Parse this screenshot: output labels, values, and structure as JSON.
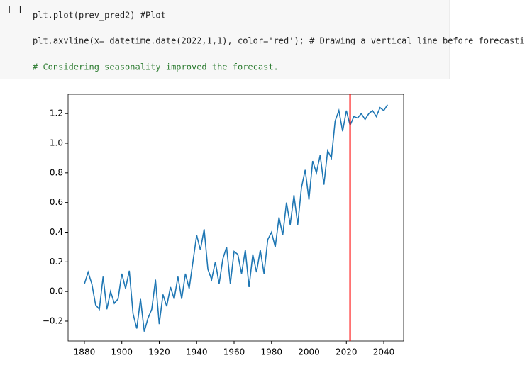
{
  "cell": {
    "prompt": "[ ]",
    "lines": [
      "plt.plot(prev_pred2) #Plot",
      "plt.axvline(x= datetime.date(2022,1,1), color='red'); # Drawing a vertical line before forecasti",
      "# Considering seasonality improved the forecast."
    ]
  },
  "chart_data": {
    "type": "line",
    "x": [
      1880,
      1882,
      1884,
      1886,
      1888,
      1890,
      1892,
      1894,
      1896,
      1898,
      1900,
      1902,
      1904,
      1906,
      1908,
      1910,
      1912,
      1914,
      1916,
      1918,
      1920,
      1922,
      1924,
      1926,
      1928,
      1930,
      1932,
      1934,
      1936,
      1938,
      1940,
      1942,
      1944,
      1946,
      1948,
      1950,
      1952,
      1954,
      1956,
      1958,
      1960,
      1962,
      1964,
      1966,
      1968,
      1970,
      1972,
      1974,
      1976,
      1978,
      1980,
      1982,
      1984,
      1986,
      1988,
      1990,
      1992,
      1994,
      1996,
      1998,
      2000,
      2002,
      2004,
      2006,
      2008,
      2010,
      2012,
      2014,
      2016,
      2018,
      2020,
      2022,
      2024,
      2026,
      2028,
      2030,
      2032,
      2034,
      2036,
      2038,
      2040,
      2042
    ],
    "series": [
      {
        "color": "#1f77b4",
        "values": [
          0.05,
          0.13,
          0.05,
          -0.09,
          -0.12,
          0.1,
          -0.12,
          0.0,
          -0.08,
          -0.05,
          0.12,
          0.02,
          0.14,
          -0.15,
          -0.25,
          -0.05,
          -0.27,
          -0.18,
          -0.12,
          0.08,
          -0.22,
          -0.02,
          -0.1,
          0.03,
          -0.05,
          0.1,
          -0.05,
          0.12,
          0.02,
          0.2,
          0.38,
          0.28,
          0.42,
          0.15,
          0.08,
          0.2,
          0.05,
          0.22,
          0.3,
          0.05,
          0.27,
          0.25,
          0.12,
          0.28,
          0.03,
          0.25,
          0.13,
          0.28,
          0.12,
          0.35,
          0.4,
          0.3,
          0.5,
          0.38,
          0.6,
          0.45,
          0.65,
          0.45,
          0.7,
          0.82,
          0.62,
          0.88,
          0.8,
          0.92,
          0.72,
          0.95,
          0.9,
          1.15,
          1.22,
          1.08,
          1.22,
          1.12,
          1.18,
          1.17,
          1.2,
          1.16,
          1.2,
          1.22,
          1.18,
          1.24,
          1.22,
          1.26
        ]
      }
    ],
    "vline": {
      "x": 2022,
      "color": "red"
    },
    "xlim": [
      1871.3,
      2050.6
    ],
    "ylim": [
      -0.334,
      1.33
    ],
    "xticks": [
      1880,
      1900,
      1920,
      1940,
      1960,
      1980,
      2000,
      2020,
      2040
    ],
    "yticks": [
      {
        "value": -0.2,
        "label": "−0.2"
      },
      {
        "value": 0,
        "label": "0.0"
      },
      0.2,
      0.4,
      0.6,
      0.8,
      {
        "value": 1,
        "label": "1.0"
      },
      1.2
    ]
  }
}
